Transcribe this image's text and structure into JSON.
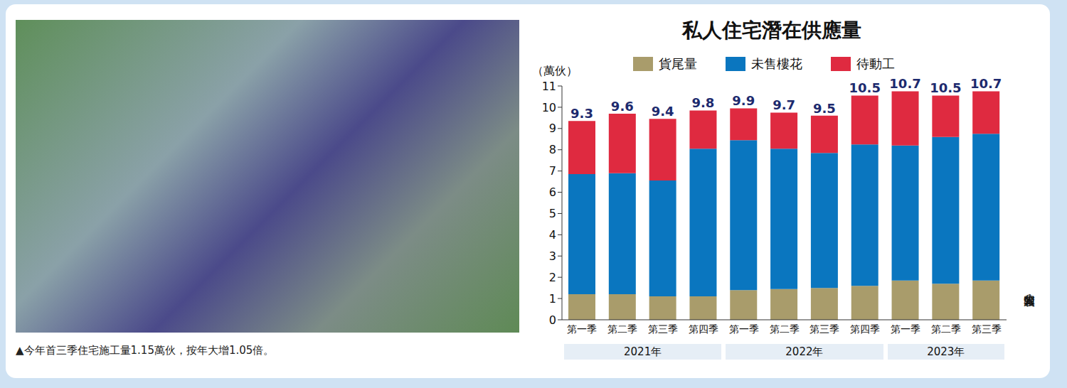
{
  "chart_data": {
    "type": "bar",
    "title": "私人住宅潛在供應量",
    "y_label": "（萬伙）",
    "caption": "▲今年首三季住宅施工量1.15萬伙，按年大增1.05倍。",
    "source": "大公報製圖",
    "categories": [
      "第一季",
      "第二季",
      "第三季",
      "第四季",
      "第一季",
      "第二季",
      "第三季",
      "第四季",
      "第一季",
      "第二季",
      "第三季"
    ],
    "category_groups": [
      "2021年",
      "2021年",
      "2021年",
      "2021年",
      "2022年",
      "2022年",
      "2022年",
      "2022年",
      "2023年",
      "2023年",
      "2023年"
    ],
    "series": [
      {
        "name": "貨尾量",
        "color": "#a99c6b",
        "values": [
          1.2,
          1.2,
          1.1,
          1.1,
          1.4,
          1.45,
          1.5,
          1.6,
          1.85,
          1.7,
          1.85
        ]
      },
      {
        "name": "未售樓花",
        "color": "#0a76bf",
        "values": [
          5.65,
          5.7,
          5.45,
          6.95,
          7.05,
          6.6,
          6.35,
          6.65,
          6.35,
          6.9,
          6.9
        ]
      },
      {
        "name": "待動工",
        "color": "#df2a40",
        "values": [
          2.5,
          2.8,
          2.9,
          1.8,
          1.5,
          1.7,
          1.75,
          2.3,
          2.55,
          1.95,
          2.0
        ]
      }
    ],
    "totals": [
      9.3,
      9.6,
      9.4,
      9.8,
      9.9,
      9.7,
      9.5,
      10.5,
      10.7,
      10.5,
      10.7
    ],
    "ylim": [
      0,
      11
    ],
    "yticks": [
      0,
      1,
      2,
      3,
      4,
      5,
      6,
      7,
      8,
      9,
      10,
      11
    ],
    "stacked": true,
    "grid": false,
    "legend": "top"
  }
}
